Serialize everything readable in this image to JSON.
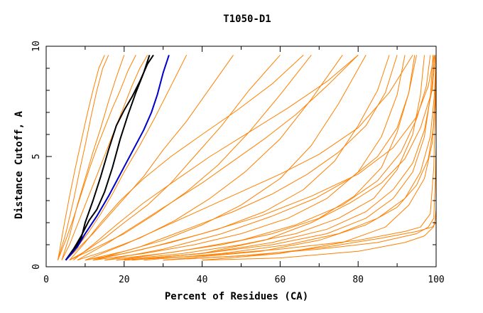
{
  "chart_data": {
    "type": "line",
    "title": "T1050-D1",
    "xlabel": "Percent of Residues (CA)",
    "ylabel": "Distance Cutoff, A",
    "xlim": [
      0,
      100
    ],
    "ylim": [
      0,
      10
    ],
    "x_ticks": [
      "0",
      "20",
      "40",
      "60",
      "80",
      "100"
    ],
    "y_ticks": [
      "0",
      "5",
      "10"
    ],
    "grid": false,
    "colors": {
      "models": "#ff8000",
      "highlight_black": "#000000",
      "highlight_blue": "#0000cc",
      "axes": "#000000"
    },
    "series": [
      {
        "color": "#000000",
        "x": [
          5,
          7,
          9,
          10,
          12,
          14,
          16,
          18,
          20,
          22,
          24,
          26,
          27.5
        ],
        "y": [
          0.3,
          0.7,
          1.3,
          2,
          3,
          4.1,
          5.3,
          6.4,
          7.1,
          7.7,
          8.4,
          9.2,
          9.6
        ]
      },
      {
        "color": "#000000",
        "x": [
          5,
          7,
          9,
          11,
          13,
          15,
          17,
          19,
          21,
          23,
          25,
          26.5
        ],
        "y": [
          0.3,
          0.8,
          1.4,
          2.1,
          2.6,
          3.4,
          4.5,
          5.8,
          6.9,
          7.9,
          8.8,
          9.6
        ]
      },
      {
        "color": "#0000cc",
        "x": [
          5,
          8,
          10,
          13,
          16,
          19,
          22,
          25,
          27,
          28.5,
          30,
          31.5
        ],
        "y": [
          0.3,
          0.9,
          1.5,
          2.3,
          3.2,
          4.2,
          5.2,
          6.2,
          7,
          7.8,
          8.8,
          9.6
        ]
      },
      {
        "color": "#ff8000",
        "x": [
          3,
          5,
          7,
          8.5,
          10,
          11.5,
          13,
          14.5,
          16
        ],
        "y": [
          0.3,
          1.5,
          3,
          4.3,
          5.5,
          6.8,
          8,
          9,
          9.6
        ]
      },
      {
        "color": "#ff8000",
        "x": [
          3,
          5,
          7,
          9,
          11,
          13,
          15,
          17,
          19,
          21,
          23
        ],
        "y": [
          0.3,
          1.2,
          2.2,
          3.3,
          4.4,
          5.4,
          6.3,
          7.2,
          8,
          8.9,
          9.6
        ]
      },
      {
        "color": "#ff8000",
        "x": [
          4,
          6,
          8,
          10,
          12,
          14,
          16,
          18,
          20,
          22,
          24,
          26
        ],
        "y": [
          0.3,
          1,
          1.9,
          2.8,
          3.7,
          4.6,
          5.5,
          6.4,
          7.3,
          8.2,
          9,
          9.6
        ]
      },
      {
        "color": "#ff8000",
        "x": [
          3,
          4.5,
          6,
          7.5,
          9,
          10.5,
          12,
          13.5,
          15
        ],
        "y": [
          0.3,
          1.8,
          3.2,
          4.5,
          5.7,
          6.9,
          8,
          9,
          9.6
        ]
      },
      {
        "color": "#ff8000",
        "x": [
          4,
          6,
          8,
          10,
          12,
          14,
          16,
          18,
          20
        ],
        "y": [
          0.3,
          1.4,
          2.8,
          4,
          5.2,
          6.3,
          7.5,
          8.6,
          9.6
        ]
      },
      {
        "color": "#ff8000",
        "x": [
          5,
          8,
          11,
          14,
          17,
          20,
          24,
          28,
          32,
          36
        ],
        "y": [
          0.3,
          0.9,
          1.6,
          2.4,
          3.3,
          4.3,
          5.5,
          6.8,
          8.2,
          9.6
        ]
      },
      {
        "color": "#ff8000",
        "x": [
          5,
          8,
          12,
          16,
          20,
          25,
          30,
          36,
          42,
          48
        ],
        "y": [
          0.3,
          0.8,
          1.5,
          2.3,
          3.1,
          4.1,
          5.3,
          6.6,
          8.1,
          9.6
        ]
      },
      {
        "color": "#ff8000",
        "x": [
          6,
          10,
          15,
          20,
          26,
          32,
          38,
          45,
          52,
          60
        ],
        "y": [
          0.3,
          0.7,
          1.3,
          2,
          2.8,
          3.8,
          5,
          6.4,
          8,
          9.6
        ]
      },
      {
        "color": "#ff8000",
        "x": [
          6,
          12,
          20,
          28,
          36,
          44,
          52,
          60,
          68
        ],
        "y": [
          0.3,
          0.8,
          1.5,
          2.4,
          3.4,
          4.6,
          6.1,
          7.8,
          9.6
        ]
      },
      {
        "color": "#ff8000",
        "x": [
          8,
          15,
          24,
          33,
          42,
          51,
          60,
          68,
          76
        ],
        "y": [
          0.3,
          0.7,
          1.3,
          2.1,
          3.1,
          4.3,
          5.8,
          7.6,
          9.6
        ]
      },
      {
        "color": "#ff8000",
        "x": [
          10,
          20,
          30,
          40,
          50,
          60,
          68,
          75,
          82
        ],
        "y": [
          0.3,
          0.7,
          1.2,
          1.9,
          2.8,
          4,
          5.5,
          7.4,
          9.6
        ]
      },
      {
        "color": "#ff8000",
        "x": [
          10,
          20,
          32,
          44,
          56,
          66,
          74,
          80,
          85,
          88
        ],
        "y": [
          0.3,
          0.6,
          1.1,
          1.7,
          2.5,
          3.5,
          4.8,
          6.4,
          8,
          9.6
        ]
      },
      {
        "color": "#ff8000",
        "x": [
          12,
          25,
          38,
          50,
          62,
          72,
          80,
          86,
          90,
          92
        ],
        "y": [
          0.3,
          0.6,
          1,
          1.5,
          2.2,
          3.1,
          4.3,
          5.9,
          7.8,
          9.6
        ]
      },
      {
        "color": "#ff8000",
        "x": [
          15,
          30,
          45,
          58,
          70,
          79,
          86,
          90,
          93,
          94.5
        ],
        "y": [
          0.3,
          0.6,
          1,
          1.5,
          2.2,
          3.2,
          4.5,
          6.1,
          7.9,
          9.6
        ]
      },
      {
        "color": "#ff8000",
        "x": [
          18,
          35,
          50,
          64,
          75,
          84,
          90,
          94,
          96,
          97
        ],
        "y": [
          0.3,
          0.6,
          1,
          1.5,
          2.2,
          3.1,
          4.4,
          6,
          7.8,
          9.6
        ]
      },
      {
        "color": "#ff8000",
        "x": [
          20,
          40,
          58,
          72,
          82,
          89,
          94,
          97,
          98.5,
          99.2
        ],
        "y": [
          0.3,
          0.6,
          1,
          1.5,
          2.2,
          3.1,
          4.3,
          5.9,
          7.7,
          9.6
        ]
      },
      {
        "color": "#ff8000",
        "x": [
          20,
          40,
          56,
          68,
          78,
          86,
          92,
          96,
          99,
          99.8
        ],
        "y": [
          0.3,
          0.6,
          1.2,
          2,
          2.9,
          3.8,
          4.9,
          6.3,
          8,
          9.6
        ]
      },
      {
        "color": "#ff8000",
        "x": [
          15,
          30,
          45,
          58,
          69,
          78,
          85,
          90,
          93,
          95
        ],
        "y": [
          0.3,
          0.8,
          1.5,
          2.3,
          3.1,
          4,
          5,
          6.3,
          7.9,
          9.6
        ]
      },
      {
        "color": "#ff8000",
        "x": [
          12,
          24,
          36,
          48,
          58,
          67,
          75,
          82,
          87,
          90
        ],
        "y": [
          0.3,
          0.9,
          1.7,
          2.5,
          3.3,
          4.2,
          5.2,
          6.4,
          7.9,
          9.6
        ]
      },
      {
        "color": "#ff8000",
        "x": [
          10,
          20,
          30,
          40,
          50,
          60,
          70,
          80,
          88,
          94
        ],
        "y": [
          0.3,
          1,
          1.8,
          2.6,
          3.4,
          4.2,
          5.1,
          6.3,
          7.9,
          9.6
        ]
      },
      {
        "color": "#ff8000",
        "x": [
          8,
          16,
          24,
          32,
          40,
          48,
          56,
          64,
          72,
          80
        ],
        "y": [
          0.3,
          1.1,
          2,
          2.9,
          3.8,
          4.8,
          5.8,
          6.9,
          8.2,
          9.6
        ]
      },
      {
        "color": "#ff8000",
        "x": [
          25,
          45,
          62,
          75,
          85,
          92,
          96,
          98.5,
          99.5,
          100
        ],
        "y": [
          0.3,
          0.6,
          1,
          1.5,
          2.2,
          3.1,
          4.3,
          5.9,
          7.7,
          9.6
        ]
      },
      {
        "color": "#ff8000",
        "x": [
          30,
          55,
          70,
          82,
          90,
          95,
          98,
          99.3,
          99.8,
          100
        ],
        "y": [
          0.3,
          0.7,
          1.2,
          1.9,
          2.7,
          3.7,
          4.9,
          6.3,
          8,
          9.6
        ]
      },
      {
        "color": "#ff8000",
        "x": [
          40,
          60,
          76,
          87,
          93,
          97,
          99,
          99.7,
          100
        ],
        "y": [
          0.3,
          0.6,
          1.1,
          1.8,
          2.8,
          4,
          5.6,
          7.6,
          9.6
        ]
      },
      {
        "color": "#ff8000",
        "x": [
          20,
          40,
          60,
          80,
          92,
          96,
          98.5,
          99.4,
          99.8,
          100
        ],
        "y": [
          0.3,
          0.5,
          0.8,
          1.2,
          1.6,
          1.8,
          2.4,
          4.5,
          7.2,
          9.6
        ]
      },
      {
        "color": "#ff8000",
        "x": [
          30,
          50,
          70,
          85,
          95,
          98,
          99.4,
          99.8,
          100
        ],
        "y": [
          0.3,
          0.5,
          0.8,
          1.1,
          1.5,
          1.8,
          2.2,
          4,
          5.5
        ]
      },
      {
        "color": "#ff8000",
        "x": [
          40,
          60,
          80,
          92,
          97,
          99.3,
          99.7,
          100
        ],
        "y": [
          0.3,
          0.4,
          0.7,
          1.1,
          1.4,
          1.8,
          2.1,
          2.6
        ]
      },
      {
        "color": "#ff8000",
        "x": [
          36,
          55,
          72,
          86,
          95,
          99,
          100
        ],
        "y": [
          0.35,
          0.55,
          0.9,
          1.3,
          1.6,
          1.8,
          2
        ]
      },
      {
        "color": "#ff8000",
        "x": [
          12,
          25,
          40,
          55,
          68,
          80,
          89,
          95,
          98,
          99.5
        ],
        "y": [
          0.3,
          0.8,
          1.5,
          2.3,
          3.2,
          4.2,
          5.4,
          6.8,
          8.2,
          9.6
        ]
      },
      {
        "color": "#ff8000",
        "x": [
          7,
          12,
          18,
          25,
          33,
          42,
          52,
          62,
          72,
          80
        ],
        "y": [
          0.3,
          1,
          1.9,
          2.9,
          3.9,
          5,
          6.1,
          7.2,
          8.4,
          9.6
        ]
      },
      {
        "color": "#ff8000",
        "x": [
          6,
          10,
          14,
          19,
          25,
          32,
          40,
          49,
          58,
          66
        ],
        "y": [
          0.3,
          1.1,
          2,
          3,
          4,
          5,
          6,
          7.1,
          8.3,
          9.6
        ]
      },
      {
        "color": "#ff8000",
        "x": [
          18,
          34,
          50,
          64,
          76,
          85,
          91,
          95,
          97.5,
          98.5
        ],
        "y": [
          0.3,
          0.7,
          1.2,
          1.9,
          2.8,
          3.9,
          5.2,
          6.7,
          8.2,
          9.6
        ]
      },
      {
        "color": "#ff8000",
        "x": [
          22,
          42,
          58,
          72,
          82,
          89,
          94,
          97,
          98.8,
          99.6
        ],
        "y": [
          0.3,
          0.65,
          1.1,
          1.7,
          2.5,
          3.5,
          4.7,
          6.2,
          7.9,
          9.6
        ]
      }
    ]
  }
}
